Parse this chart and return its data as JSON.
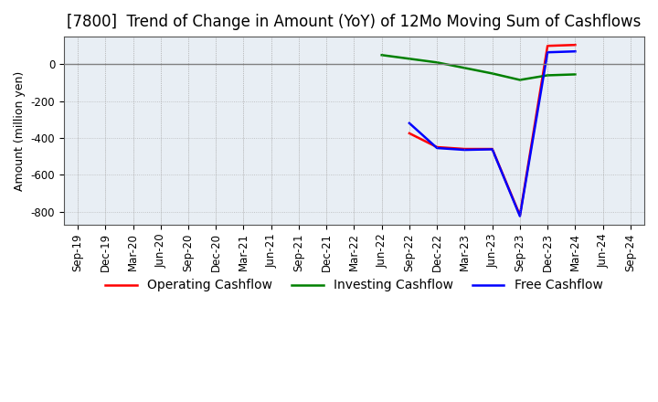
{
  "title": "[7800]  Trend of Change in Amount (YoY) of 12Mo Moving Sum of Cashflows",
  "ylabel": "Amount (million yen)",
  "xlim_labels": [
    "Sep-19",
    "Dec-19",
    "Mar-20",
    "Jun-20",
    "Sep-20",
    "Dec-20",
    "Mar-21",
    "Jun-21",
    "Sep-21",
    "Dec-21",
    "Mar-22",
    "Jun-22",
    "Sep-22",
    "Dec-22",
    "Mar-23",
    "Jun-23",
    "Sep-23",
    "Dec-23",
    "Mar-24",
    "Jun-24",
    "Sep-24"
  ],
  "ylim": [
    -870,
    150
  ],
  "yticks": [
    0,
    -200,
    -400,
    -600,
    -800
  ],
  "operating": {
    "x": [
      12,
      13,
      14,
      15,
      16,
      17,
      18
    ],
    "y": [
      -375,
      -450,
      -460,
      -460,
      -820,
      100,
      105
    ],
    "color": "#ff0000",
    "label": "Operating Cashflow"
  },
  "investing": {
    "x": [
      11,
      12,
      13,
      14,
      15,
      16,
      17,
      18
    ],
    "y": [
      50,
      30,
      10,
      -20,
      -50,
      -85,
      -60,
      -55
    ],
    "color": "#008000",
    "label": "Investing Cashflow"
  },
  "free": {
    "x": [
      12,
      13,
      14,
      15,
      16,
      17,
      18
    ],
    "y": [
      -320,
      -455,
      -465,
      -462,
      -825,
      65,
      70
    ],
    "color": "#0000ff",
    "label": "Free Cashflow"
  },
  "background_color": "#ffffff",
  "plot_bg_color": "#e8eef4",
  "grid_color": "#aaaaaa",
  "zero_line_color": "#808080",
  "title_fontsize": 12,
  "legend_fontsize": 10,
  "tick_fontsize": 8.5
}
